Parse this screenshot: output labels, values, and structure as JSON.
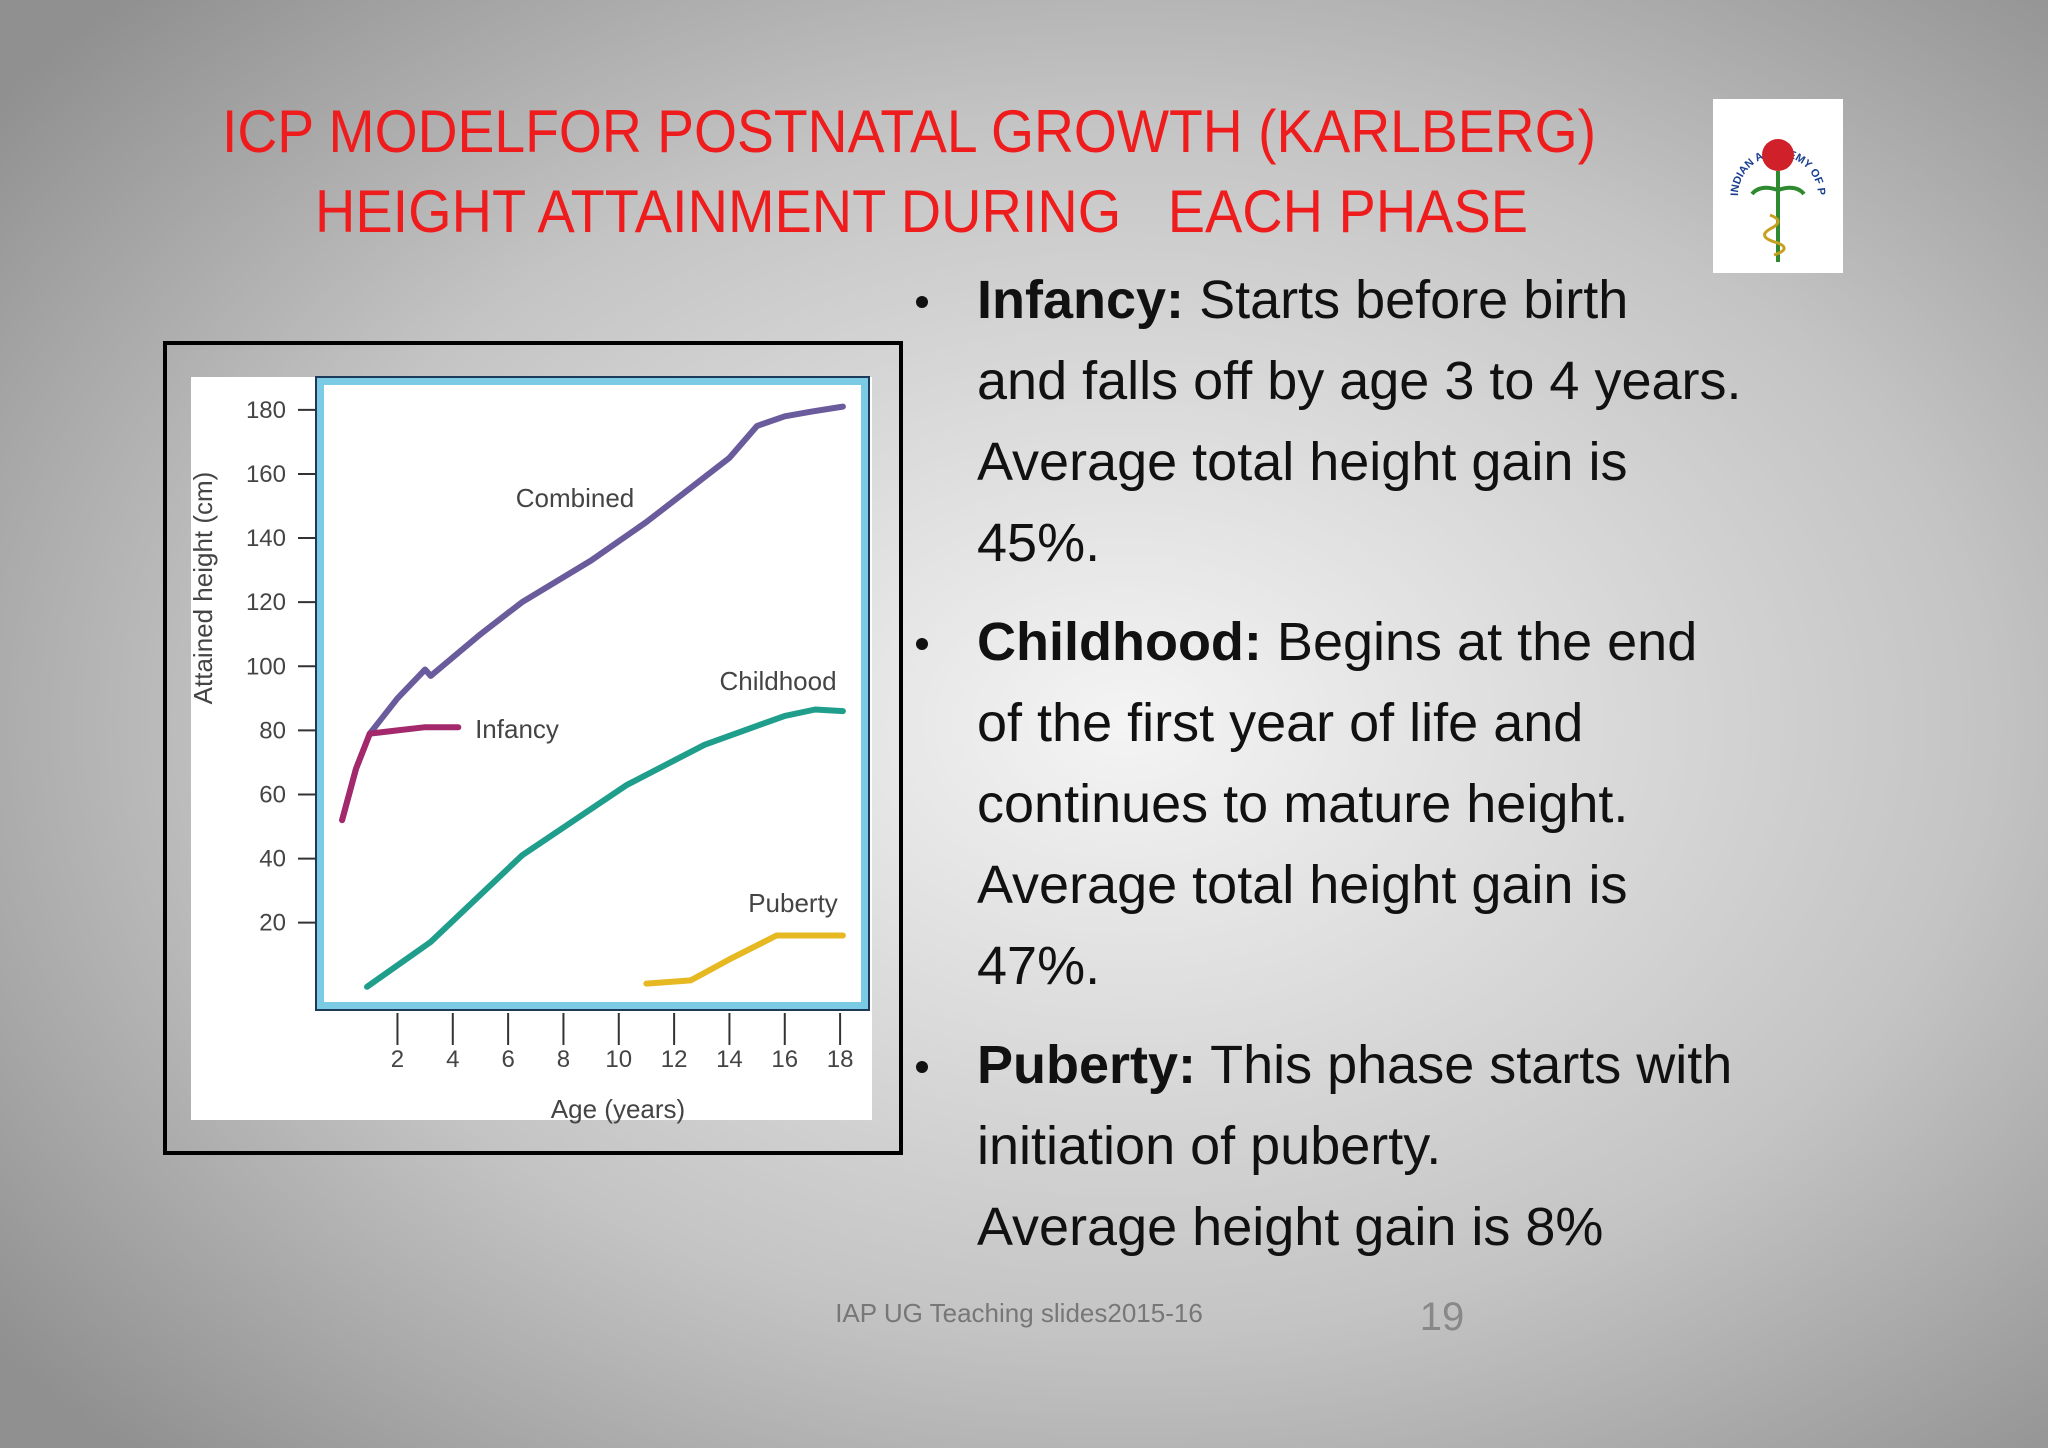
{
  "header": {
    "title_lines": [
      "ICP MODELFOR POSTNATAL GROWTH (KARLBERG)",
      "HEIGHT ATTAINMENT DURING   EACH PHASE"
    ],
    "logo_text": "INDIAN ACADEMY OF PEDIATRICS"
  },
  "chart_data": {
    "type": "line",
    "xlabel": "Age (years)",
    "ylabel": "Attained height (cm)",
    "xlim": [
      -0.8,
      18.9
    ],
    "ylim": [
      -6,
      189
    ],
    "xticks": [
      2,
      4,
      6,
      8,
      10,
      12,
      14,
      16,
      18
    ],
    "yticks": [
      20,
      40,
      60,
      80,
      100,
      120,
      140,
      160,
      180
    ],
    "series": [
      {
        "name": "Combined",
        "color": "#6a5b9c",
        "x": [
          0,
          0.5,
          1,
          2,
          3,
          3.2,
          5,
          6.5,
          9,
          11,
          12.5,
          14,
          15,
          16,
          17,
          18.1
        ],
        "values": [
          52,
          68,
          79,
          90,
          99,
          97,
          110,
          120,
          133,
          145,
          155,
          165,
          175,
          178,
          179.5,
          181
        ]
      },
      {
        "name": "Infancy",
        "color": "#a3286c",
        "x": [
          0,
          0.5,
          1,
          2,
          3,
          4.2
        ],
        "values": [
          52,
          68,
          79,
          80,
          81,
          81
        ]
      },
      {
        "name": "Childhood",
        "color": "#1f9e8c",
        "x": [
          0.9,
          3.2,
          6.5,
          10.3,
          13.1,
          16,
          17.1,
          18.1
        ],
        "values": [
          0,
          14,
          41,
          63,
          75.5,
          84.5,
          86.5,
          86
        ]
      },
      {
        "name": "Puberty",
        "color": "#e6b822",
        "x": [
          11,
          12.6,
          14.1,
          15.7,
          18.1
        ],
        "values": [
          1,
          2,
          9,
          16,
          16
        ]
      }
    ]
  },
  "bullets": [
    {
      "lead": "Infancy:",
      "lines": [
        "Starts before birth",
        "and falls off by age 3 to 4 years.",
        "Average total height gain is",
        "45%."
      ]
    },
    {
      "lead": "Childhood:",
      "lines": [
        "Begins at the end",
        "of the first year of life and",
        "continues to mature height.",
        "Average total height gain is",
        "47%."
      ]
    },
    {
      "lead": "Puberty:",
      "lines": [
        "This phase starts with",
        "initiation of puberty.",
        "Average height gain is 8%"
      ]
    }
  ],
  "footer": {
    "text": "IAP UG Teaching slides2015-16",
    "page": "19"
  }
}
